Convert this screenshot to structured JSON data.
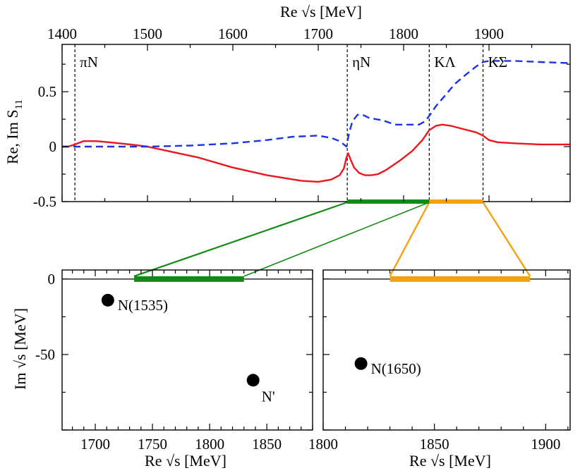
{
  "chart_data": [
    {
      "type": "line",
      "xlabel": "Re √s [MeV]",
      "ylabel": "Re, Im S₁₁",
      "xlim": [
        1400,
        1995
      ],
      "ylim": [
        -0.5,
        0.93
      ],
      "x_ticks": [
        "1400",
        "1500",
        "1600",
        "1700",
        "1800",
        "1900"
      ],
      "y_ticks": [
        "-0.5",
        "0",
        "0.5"
      ],
      "thresholds": [
        {
          "label": "πN",
          "x": 1415
        },
        {
          "label": "ηN",
          "x": 1734
        },
        {
          "label": "KΛ",
          "x": 1830
        },
        {
          "label": "KΣ",
          "x": 1893
        }
      ],
      "bands": [
        {
          "name": "green",
          "color": "#138a13",
          "x": [
            1734,
            1830
          ]
        },
        {
          "name": "orange",
          "color": "#f2a20f",
          "x": [
            1830,
            1893
          ]
        }
      ],
      "series": [
        {
          "color": "#e8171c",
          "style": "solid",
          "x": [
            1400,
            1407,
            1415,
            1425,
            1440,
            1455,
            1480,
            1500,
            1530,
            1560,
            1600,
            1640,
            1680,
            1700,
            1715,
            1725,
            1730,
            1733,
            1735,
            1738,
            1742,
            1748,
            1755,
            1762,
            1770,
            1780,
            1795,
            1810,
            1822,
            1830,
            1838,
            1845,
            1855,
            1870,
            1885,
            1893,
            1900,
            1910,
            1930,
            1960,
            1995
          ],
          "y": [
            0.0,
            0.0,
            0.02,
            0.05,
            0.05,
            0.04,
            0.02,
            0.0,
            -0.05,
            -0.1,
            -0.19,
            -0.26,
            -0.31,
            -0.32,
            -0.3,
            -0.26,
            -0.2,
            -0.1,
            -0.06,
            -0.12,
            -0.19,
            -0.24,
            -0.26,
            -0.26,
            -0.25,
            -0.21,
            -0.13,
            -0.04,
            0.06,
            0.15,
            0.19,
            0.2,
            0.19,
            0.16,
            0.13,
            0.1,
            0.06,
            0.04,
            0.03,
            0.02,
            0.02
          ]
        },
        {
          "color": "#1a33e6",
          "style": "dashed",
          "x": [
            1400,
            1420,
            1450,
            1500,
            1550,
            1600,
            1640,
            1670,
            1700,
            1715,
            1725,
            1730,
            1733,
            1736,
            1740,
            1746,
            1752,
            1760,
            1775,
            1790,
            1805,
            1818,
            1825,
            1830,
            1838,
            1848,
            1860,
            1872,
            1885,
            1893,
            1900,
            1930,
            1960,
            1995
          ],
          "y": [
            0.0,
            0.0,
            0.0,
            0.0,
            0.01,
            0.03,
            0.06,
            0.09,
            0.1,
            0.08,
            0.05,
            0.02,
            0.0,
            0.12,
            0.23,
            0.29,
            0.29,
            0.26,
            0.24,
            0.2,
            0.2,
            0.2,
            0.23,
            0.28,
            0.37,
            0.46,
            0.57,
            0.65,
            0.73,
            0.77,
            0.78,
            0.78,
            0.77,
            0.76
          ]
        }
      ]
    },
    {
      "type": "scatter",
      "xlabel": "Re √s [MeV]",
      "ylabel": "Im √s [MeV]",
      "xlim": [
        1671,
        1890
      ],
      "ylim": [
        -100,
        6
      ],
      "x_ticks": [
        "1700",
        "1750",
        "1800",
        "1850"
      ],
      "y_ticks": [
        "0",
        "-50"
      ],
      "band": {
        "color": "#138a13",
        "x": [
          1734,
          1830
        ]
      },
      "points": [
        {
          "label": "N(1535)",
          "x": 1711,
          "y": -14
        },
        {
          "label": "N'",
          "x": 1838,
          "y": -67
        }
      ]
    },
    {
      "type": "scatter",
      "xlabel": "Re √s [MeV]",
      "ylabel": "",
      "xlim": [
        1800,
        1911
      ],
      "ylim": [
        -100,
        6
      ],
      "x_ticks": [
        "1800",
        "1850",
        "1900"
      ],
      "y_ticks": [],
      "band": {
        "color": "#f2a20f",
        "x": [
          1830,
          1893
        ]
      },
      "points": [
        {
          "label": "N(1650)",
          "x": 1817,
          "y": -56
        }
      ]
    }
  ]
}
